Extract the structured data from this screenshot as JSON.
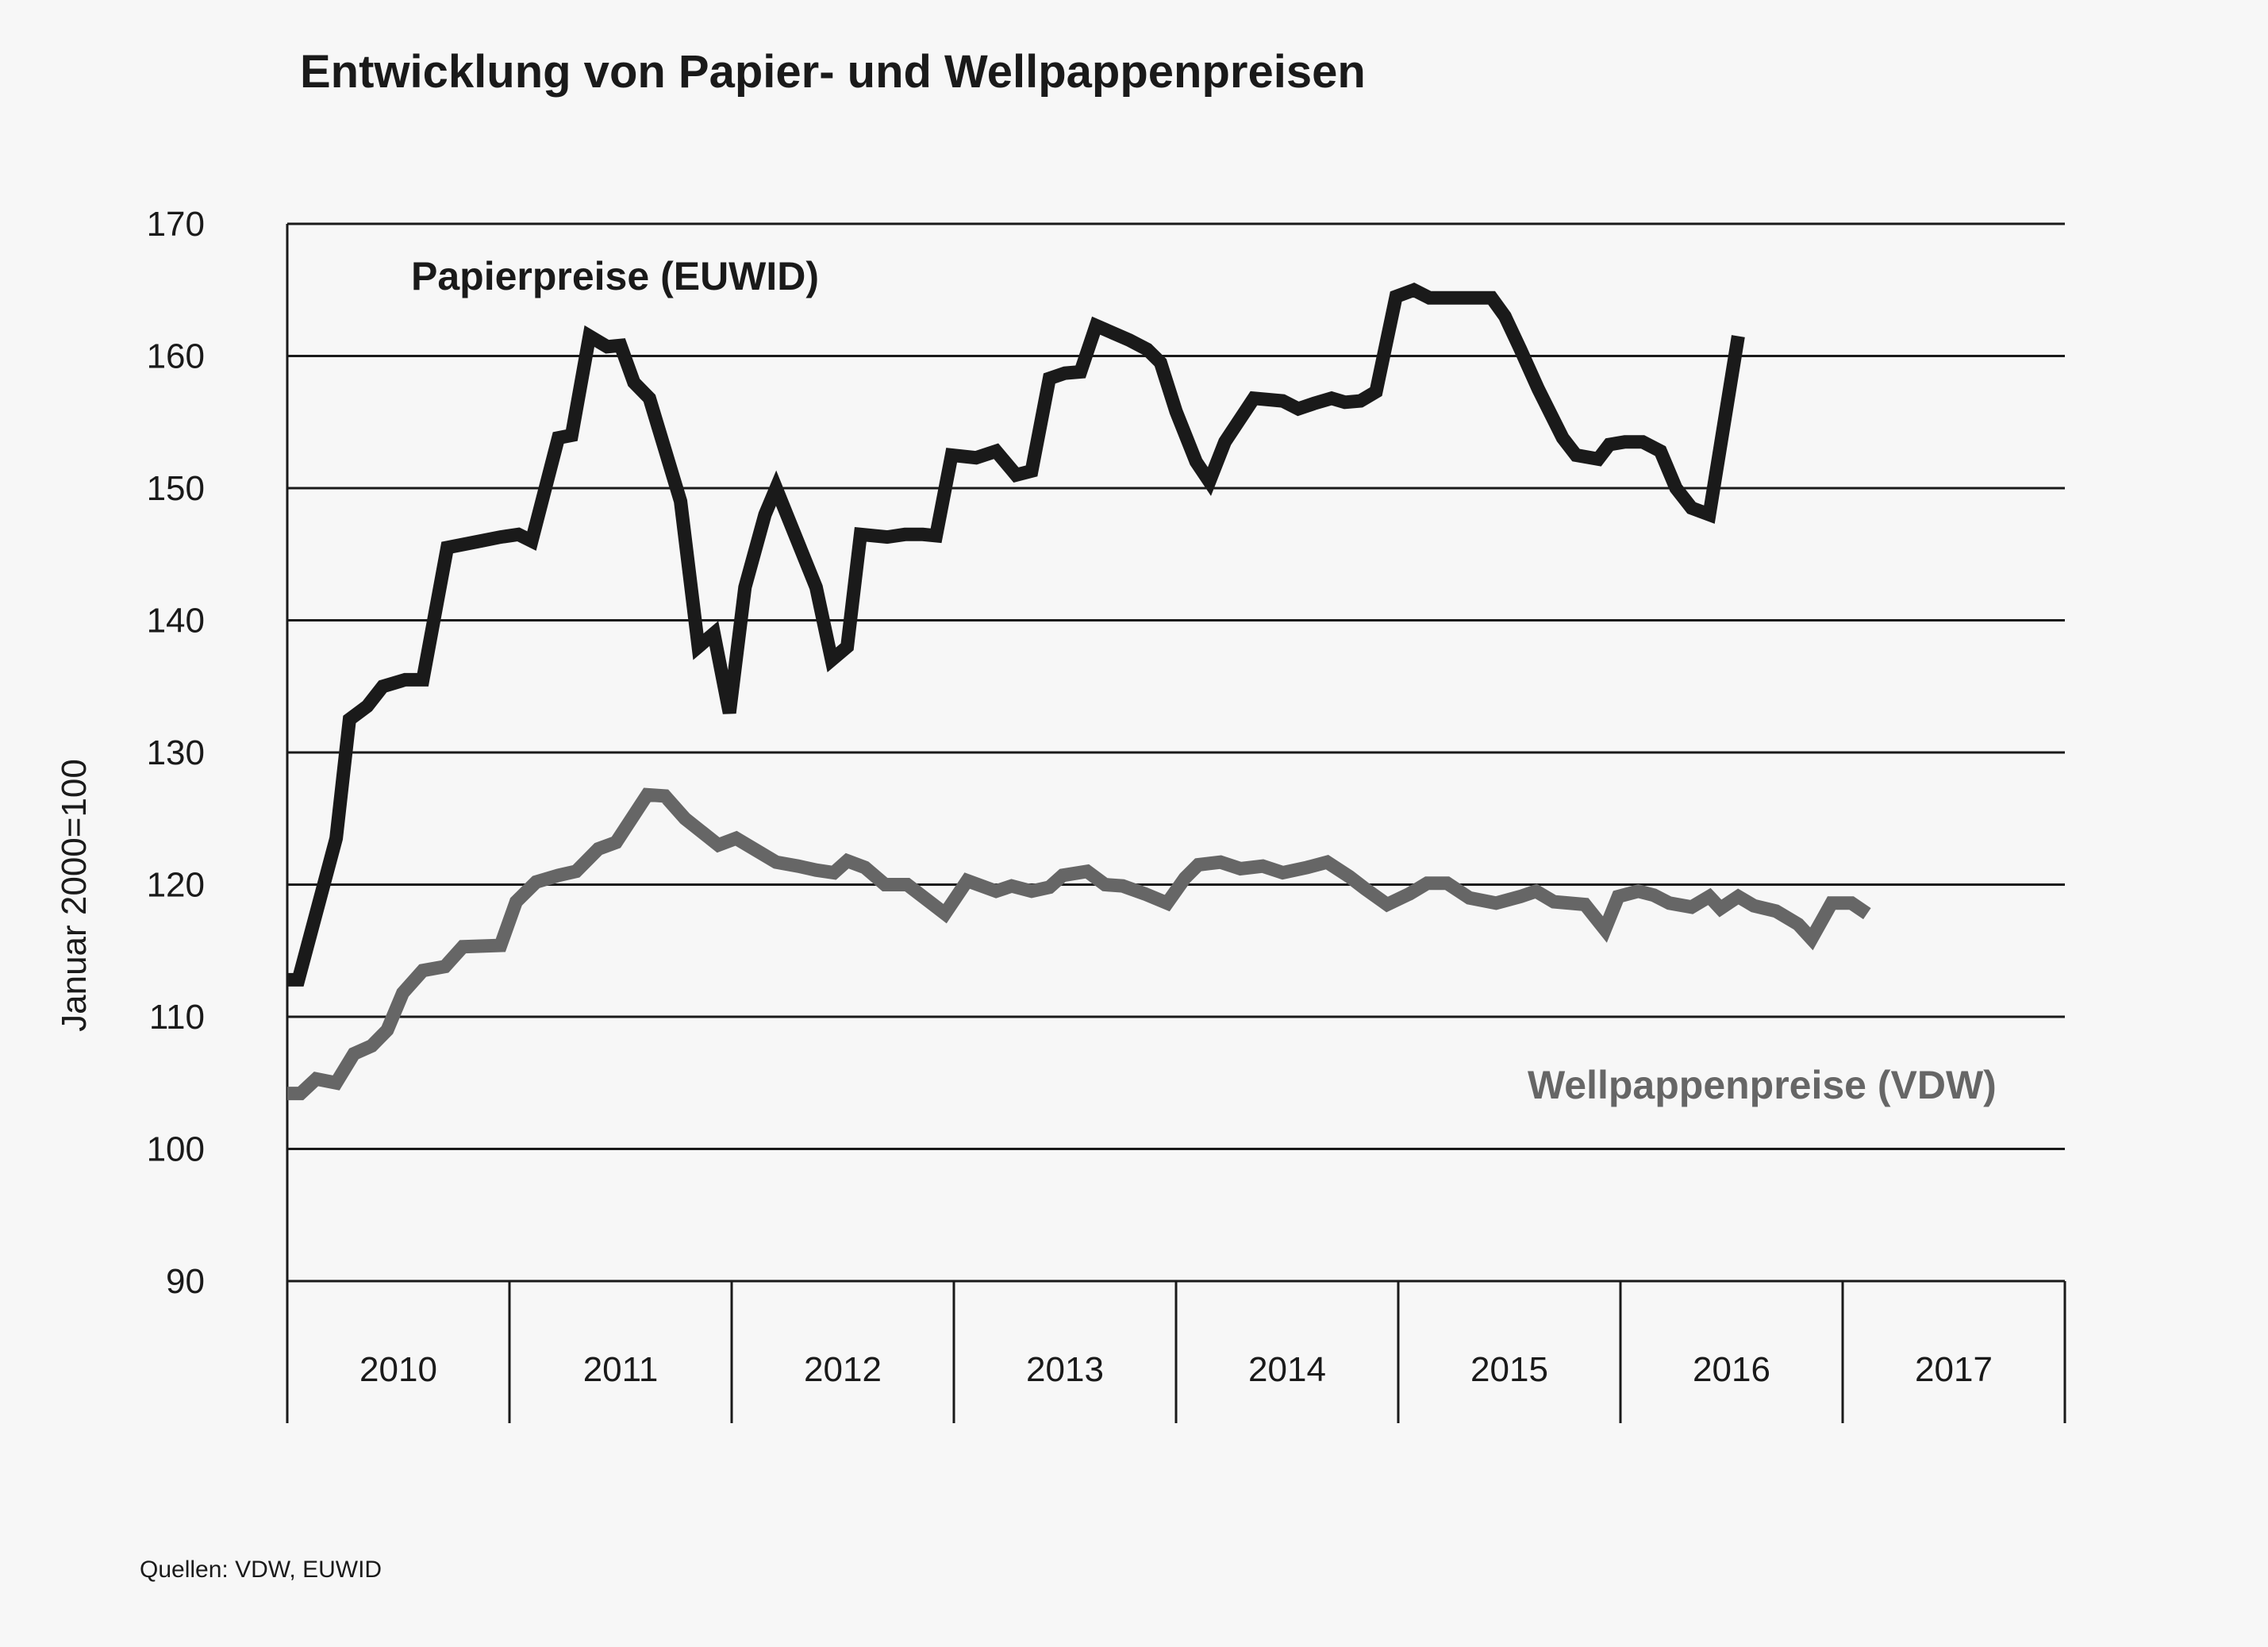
{
  "chart_data": {
    "type": "line",
    "title": "Entwicklung von Papier- und Wellpappenpreisen",
    "ylabel": "Januar 2000=100",
    "xlabel": "",
    "ylim": [
      90,
      170
    ],
    "yticks": [
      "90",
      "100",
      "110",
      "120",
      "130",
      "140",
      "150",
      "160",
      "170"
    ],
    "categories": [
      "2010",
      "2011",
      "2012",
      "2013",
      "2014",
      "2015",
      "2016",
      "2017"
    ],
    "x_range": [
      2010.0,
      2018.0
    ],
    "grid": "horizontal",
    "source": "Quellen: VDW, EUWID",
    "series": [
      {
        "name": "Papierpreise (EUWID)",
        "color": "#1a1a1a",
        "label_position": "top-left",
        "points": [
          [
            2010.0,
            112.8
          ],
          [
            2010.05,
            112.8
          ],
          [
            2010.22,
            123.5
          ],
          [
            2010.28,
            132.5
          ],
          [
            2010.36,
            133.5
          ],
          [
            2010.43,
            135.0
          ],
          [
            2010.53,
            135.5
          ],
          [
            2010.61,
            135.5
          ],
          [
            2010.72,
            145.5
          ],
          [
            2010.87,
            146.0
          ],
          [
            2010.96,
            146.3
          ],
          [
            2011.04,
            146.5
          ],
          [
            2011.1,
            146.0
          ],
          [
            2011.22,
            153.8
          ],
          [
            2011.28,
            154.0
          ],
          [
            2011.36,
            161.5
          ],
          [
            2011.44,
            160.7
          ],
          [
            2011.5,
            160.8
          ],
          [
            2011.56,
            158.0
          ],
          [
            2011.63,
            156.8
          ],
          [
            2011.77,
            149.0
          ],
          [
            2011.85,
            138.0
          ],
          [
            2011.92,
            139.0
          ],
          [
            2011.99,
            133.0
          ],
          [
            2012.06,
            142.5
          ],
          [
            2012.15,
            148.0
          ],
          [
            2012.2,
            150.0
          ],
          [
            2012.38,
            142.5
          ],
          [
            2012.45,
            137.0
          ],
          [
            2012.52,
            138.0
          ],
          [
            2012.58,
            146.5
          ],
          [
            2012.7,
            146.3
          ],
          [
            2012.78,
            146.5
          ],
          [
            2012.86,
            146.5
          ],
          [
            2012.92,
            146.4
          ],
          [
            2012.99,
            152.5
          ],
          [
            2013.1,
            152.3
          ],
          [
            2013.19,
            152.8
          ],
          [
            2013.28,
            151.0
          ],
          [
            2013.35,
            151.3
          ],
          [
            2013.43,
            158.3
          ],
          [
            2013.5,
            158.7
          ],
          [
            2013.57,
            158.8
          ],
          [
            2013.64,
            162.3
          ],
          [
            2013.79,
            161.2
          ],
          [
            2013.87,
            160.5
          ],
          [
            2013.93,
            159.5
          ],
          [
            2014.0,
            155.8
          ],
          [
            2014.09,
            152.0
          ],
          [
            2014.15,
            150.5
          ],
          [
            2014.22,
            153.5
          ],
          [
            2014.35,
            156.8
          ],
          [
            2014.48,
            156.6
          ],
          [
            2014.55,
            156.0
          ],
          [
            2014.62,
            156.4
          ],
          [
            2014.7,
            156.8
          ],
          [
            2014.76,
            156.5
          ],
          [
            2014.83,
            156.6
          ],
          [
            2014.9,
            157.3
          ],
          [
            2014.99,
            164.5
          ],
          [
            2015.07,
            165.0
          ],
          [
            2015.14,
            164.4
          ],
          [
            2015.42,
            164.4
          ],
          [
            2015.48,
            163.0
          ],
          [
            2015.55,
            160.5
          ],
          [
            2015.63,
            157.5
          ],
          [
            2015.74,
            153.8
          ],
          [
            2015.8,
            152.5
          ],
          [
            2015.9,
            152.2
          ],
          [
            2015.95,
            153.3
          ],
          [
            2016.02,
            153.5
          ],
          [
            2016.1,
            153.5
          ],
          [
            2016.18,
            152.8
          ],
          [
            2016.25,
            150.0
          ],
          [
            2016.32,
            148.5
          ],
          [
            2016.4,
            148.0
          ],
          [
            2016.53,
            161.5
          ]
        ]
      },
      {
        "name": "Wellpappenpreise (VDW)",
        "color": "#666666",
        "label_position": "bottom-right",
        "points": [
          [
            2010.0,
            104.2
          ],
          [
            2010.06,
            104.2
          ],
          [
            2010.13,
            105.3
          ],
          [
            2010.22,
            105.0
          ],
          [
            2010.3,
            107.2
          ],
          [
            2010.38,
            107.8
          ],
          [
            2010.45,
            109.0
          ],
          [
            2010.52,
            111.8
          ],
          [
            2010.61,
            113.5
          ],
          [
            2010.71,
            113.8
          ],
          [
            2010.79,
            115.3
          ],
          [
            2010.96,
            115.4
          ],
          [
            2011.03,
            118.7
          ],
          [
            2011.12,
            120.2
          ],
          [
            2011.22,
            120.7
          ],
          [
            2011.3,
            121.0
          ],
          [
            2011.4,
            122.7
          ],
          [
            2011.48,
            123.2
          ],
          [
            2011.62,
            126.8
          ],
          [
            2011.7,
            126.7
          ],
          [
            2011.79,
            125.0
          ],
          [
            2011.94,
            123.0
          ],
          [
            2012.02,
            123.5
          ],
          [
            2012.2,
            121.7
          ],
          [
            2012.3,
            121.4
          ],
          [
            2012.38,
            121.1
          ],
          [
            2012.46,
            120.9
          ],
          [
            2012.52,
            121.8
          ],
          [
            2012.6,
            121.3
          ],
          [
            2012.69,
            120.0
          ],
          [
            2012.79,
            120.0
          ],
          [
            2012.96,
            117.8
          ],
          [
            2013.06,
            120.3
          ],
          [
            2013.19,
            119.5
          ],
          [
            2013.26,
            119.9
          ],
          [
            2013.35,
            119.5
          ],
          [
            2013.43,
            119.8
          ],
          [
            2013.49,
            120.7
          ],
          [
            2013.6,
            121.0
          ],
          [
            2013.68,
            120.0
          ],
          [
            2013.76,
            119.9
          ],
          [
            2013.86,
            119.3
          ],
          [
            2013.96,
            118.6
          ],
          [
            2014.04,
            120.5
          ],
          [
            2014.1,
            121.5
          ],
          [
            2014.2,
            121.7
          ],
          [
            2014.29,
            121.2
          ],
          [
            2014.39,
            121.4
          ],
          [
            2014.48,
            120.9
          ],
          [
            2014.59,
            121.3
          ],
          [
            2014.68,
            121.7
          ],
          [
            2014.78,
            120.6
          ],
          [
            2014.85,
            119.7
          ],
          [
            2014.95,
            118.5
          ],
          [
            2015.05,
            119.3
          ],
          [
            2015.13,
            120.1
          ],
          [
            2015.22,
            120.1
          ],
          [
            2015.32,
            119.0
          ],
          [
            2015.44,
            118.6
          ],
          [
            2015.55,
            119.1
          ],
          [
            2015.62,
            119.5
          ],
          [
            2015.7,
            118.7
          ],
          [
            2015.84,
            118.5
          ],
          [
            2015.93,
            116.6
          ],
          [
            2015.99,
            119.1
          ],
          [
            2016.08,
            119.5
          ],
          [
            2016.15,
            119.2
          ],
          [
            2016.22,
            118.6
          ],
          [
            2016.32,
            118.3
          ],
          [
            2016.4,
            119.1
          ],
          [
            2016.45,
            118.2
          ],
          [
            2016.53,
            119.1
          ],
          [
            2016.6,
            118.4
          ],
          [
            2016.7,
            118.0
          ],
          [
            2016.8,
            117.0
          ],
          [
            2016.86,
            115.9
          ],
          [
            2016.95,
            118.6
          ],
          [
            2017.04,
            118.6
          ],
          [
            2017.11,
            117.8
          ]
        ]
      }
    ]
  }
}
